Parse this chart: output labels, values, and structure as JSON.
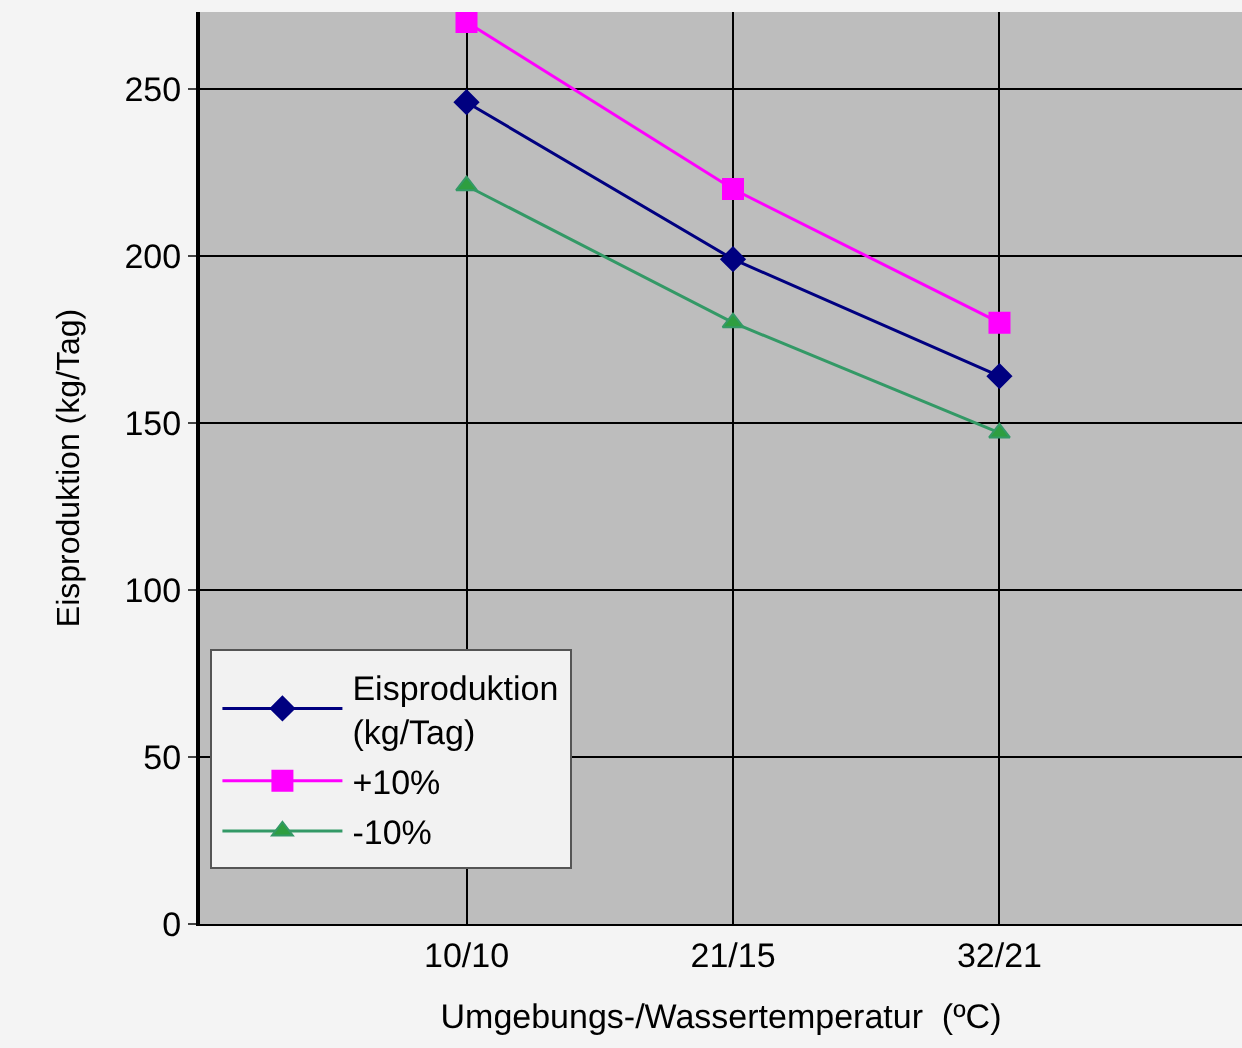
{
  "chart_data": {
    "type": "line",
    "xlabel": "Umgebungs-/Wassertemperatur  (ºC)",
    "ylabel": "Eisproduktion (kg/Tag)",
    "categories": [
      "10/10",
      "21/15",
      "32/21"
    ],
    "series": [
      {
        "name": "Eisproduktion (kg/Tag)",
        "color": "#000080",
        "marker": "diamond",
        "values": [
          246,
          199,
          164
        ]
      },
      {
        "name": "+10%",
        "color": "#ff00ff",
        "marker": "square",
        "values": [
          270,
          220,
          180
        ]
      },
      {
        "name": "-10%",
        "color": "#339966",
        "marker": "triangle",
        "values": [
          221,
          180,
          147
        ]
      }
    ],
    "ylim": [
      0,
      273
    ],
    "yticks": [
      0,
      50,
      100,
      150,
      200,
      250
    ],
    "grid": true,
    "legend": "bottom left",
    "line_style": "solid"
  }
}
